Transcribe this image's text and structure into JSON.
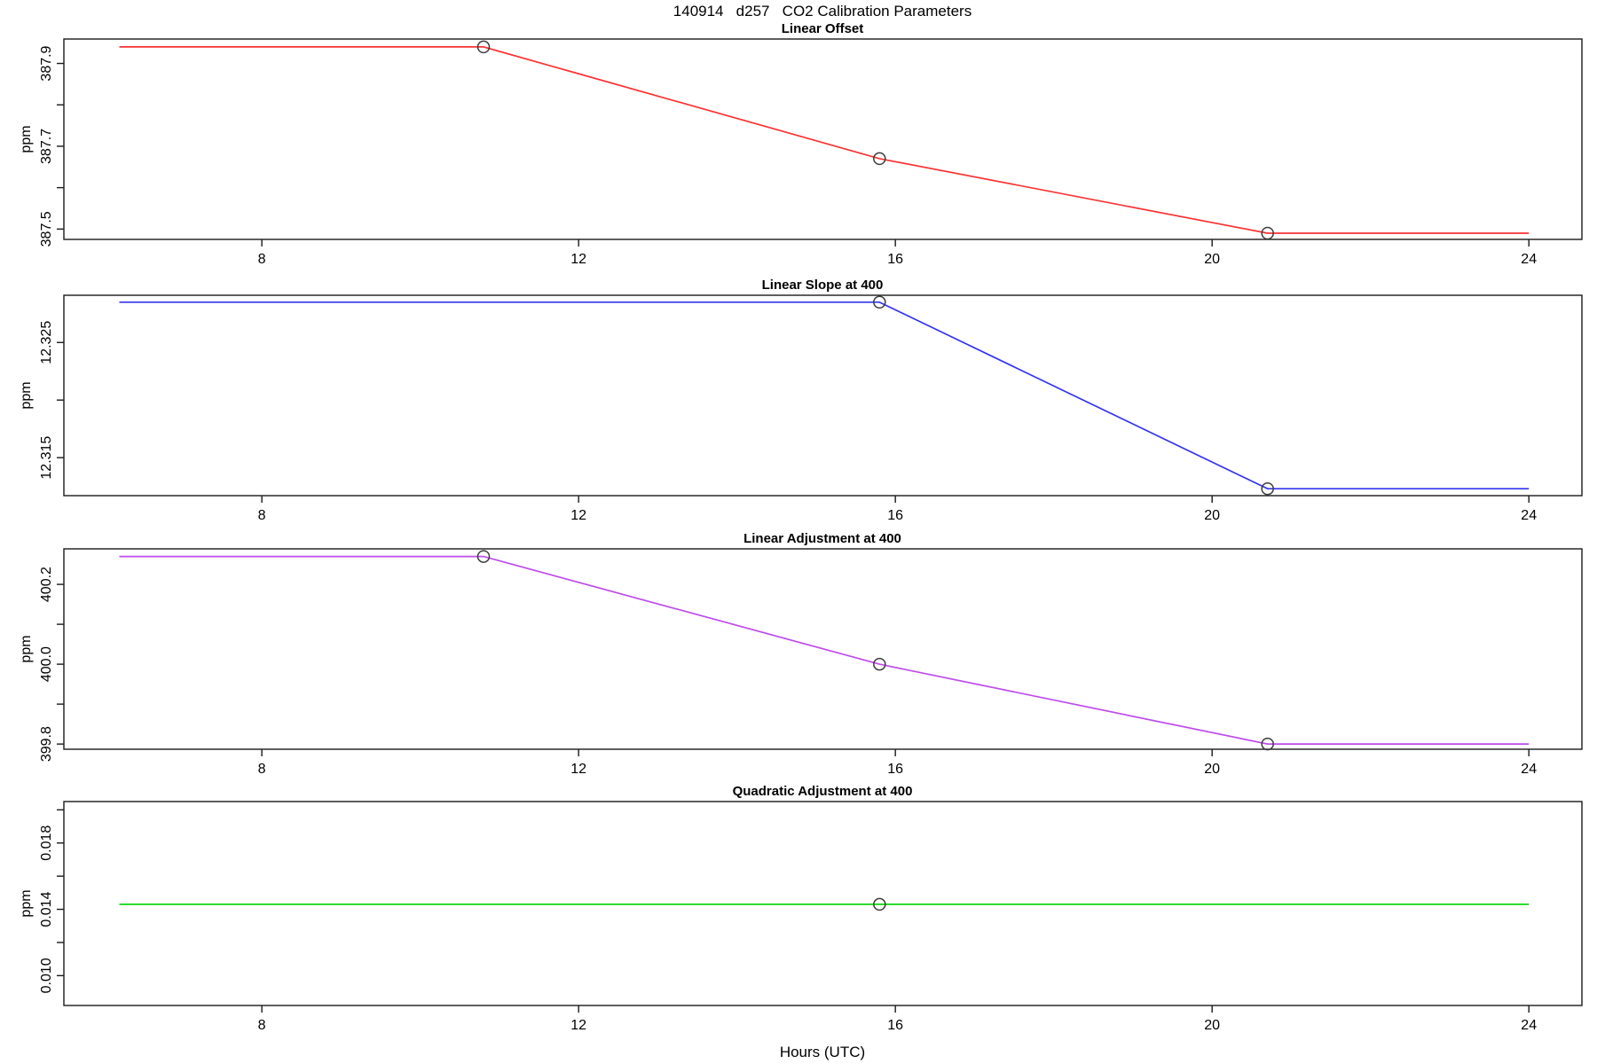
{
  "page_title": "140914   d257   CO2 Calibration Parameters",
  "x_axis_label": "Hours (UTC)",
  "chart_data": [
    {
      "type": "line",
      "title": "Linear Offset",
      "ylabel": "ppm",
      "xlabel": "",
      "color": "#FA3232",
      "marker_color": "#3C3C3C",
      "xlim": [
        5.5,
        24.67
      ],
      "ylim": [
        387.475,
        387.959
      ],
      "xticks": [
        8,
        12,
        16,
        20,
        24
      ],
      "yticks": [
        {
          "v": 387.5,
          "label": "387.5"
        },
        {
          "v": 387.6,
          "label": ""
        },
        {
          "v": 387.7,
          "label": "387.7"
        },
        {
          "v": 387.8,
          "label": ""
        },
        {
          "v": 387.9,
          "label": "387.9"
        }
      ],
      "x": [
        6.2,
        10.8,
        15.8,
        20.7,
        24
      ],
      "y": [
        387.94,
        387.94,
        387.67,
        387.49,
        387.49
      ],
      "markers_x": [
        10.8,
        15.8,
        20.7
      ],
      "markers_y": [
        387.94,
        387.67,
        387.49
      ],
      "grid": false,
      "legend": "none"
    },
    {
      "type": "line",
      "title": "Linear Slope at 400",
      "ylabel": "ppm",
      "xlabel": "",
      "color": "#3434F2",
      "marker_color": "#3C3C3C",
      "xlim": [
        5.5,
        24.67
      ],
      "ylim": [
        12.3117,
        12.3291
      ],
      "xticks": [
        8,
        12,
        16,
        20,
        24
      ],
      "yticks": [
        {
          "v": 12.315,
          "label": "12.315"
        },
        {
          "v": 12.32,
          "label": ""
        },
        {
          "v": 12.325,
          "label": "12.325"
        }
      ],
      "x": [
        6.2,
        15.8,
        20.7,
        24
      ],
      "y": [
        12.3285,
        12.3285,
        12.3123,
        12.3123
      ],
      "markers_x": [
        15.8,
        20.7
      ],
      "markers_y": [
        12.3285,
        12.3123
      ],
      "grid": false,
      "legend": "none"
    },
    {
      "type": "line",
      "title": "Linear Adjustment at 400",
      "ylabel": "ppm",
      "xlabel": "",
      "color": "#BE4BEB",
      "marker_color": "#3C3C3C",
      "xlim": [
        5.5,
        24.67
      ],
      "ylim": [
        399.787,
        400.289
      ],
      "xticks": [
        8,
        12,
        16,
        20,
        24
      ],
      "yticks": [
        {
          "v": 399.8,
          "label": "399.8"
        },
        {
          "v": 399.9,
          "label": ""
        },
        {
          "v": 400.0,
          "label": "400.0"
        },
        {
          "v": 400.1,
          "label": ""
        },
        {
          "v": 400.2,
          "label": "400.2"
        }
      ],
      "x": [
        6.2,
        10.8,
        15.8,
        20.7,
        24
      ],
      "y": [
        400.27,
        400.27,
        400.0,
        399.8,
        399.8
      ],
      "markers_x": [
        10.8,
        15.8,
        20.7
      ],
      "markers_y": [
        400.27,
        400.0,
        399.8
      ],
      "grid": false,
      "legend": "none"
    },
    {
      "type": "line",
      "title": "Quadratic Adjustment at 400",
      "ylabel": "ppm",
      "xlabel": "Hours (UTC)",
      "color": "#0ED60E",
      "marker_color": "#3C3C3C",
      "xlim": [
        5.5,
        24.67
      ],
      "ylim": [
        0.0082,
        0.0205
      ],
      "xticks": [
        8,
        12,
        16,
        20,
        24
      ],
      "yticks": [
        {
          "v": 0.01,
          "label": "0.010"
        },
        {
          "v": 0.012,
          "label": ""
        },
        {
          "v": 0.014,
          "label": "0.014"
        },
        {
          "v": 0.016,
          "label": ""
        },
        {
          "v": 0.018,
          "label": "0.018"
        },
        {
          "v": 0.02,
          "label": ""
        }
      ],
      "x": [
        6.2,
        24
      ],
      "y": [
        0.0143,
        0.0143
      ],
      "markers_x": [
        15.8
      ],
      "markers_y": [
        0.0143
      ],
      "grid": false,
      "legend": "none"
    }
  ]
}
